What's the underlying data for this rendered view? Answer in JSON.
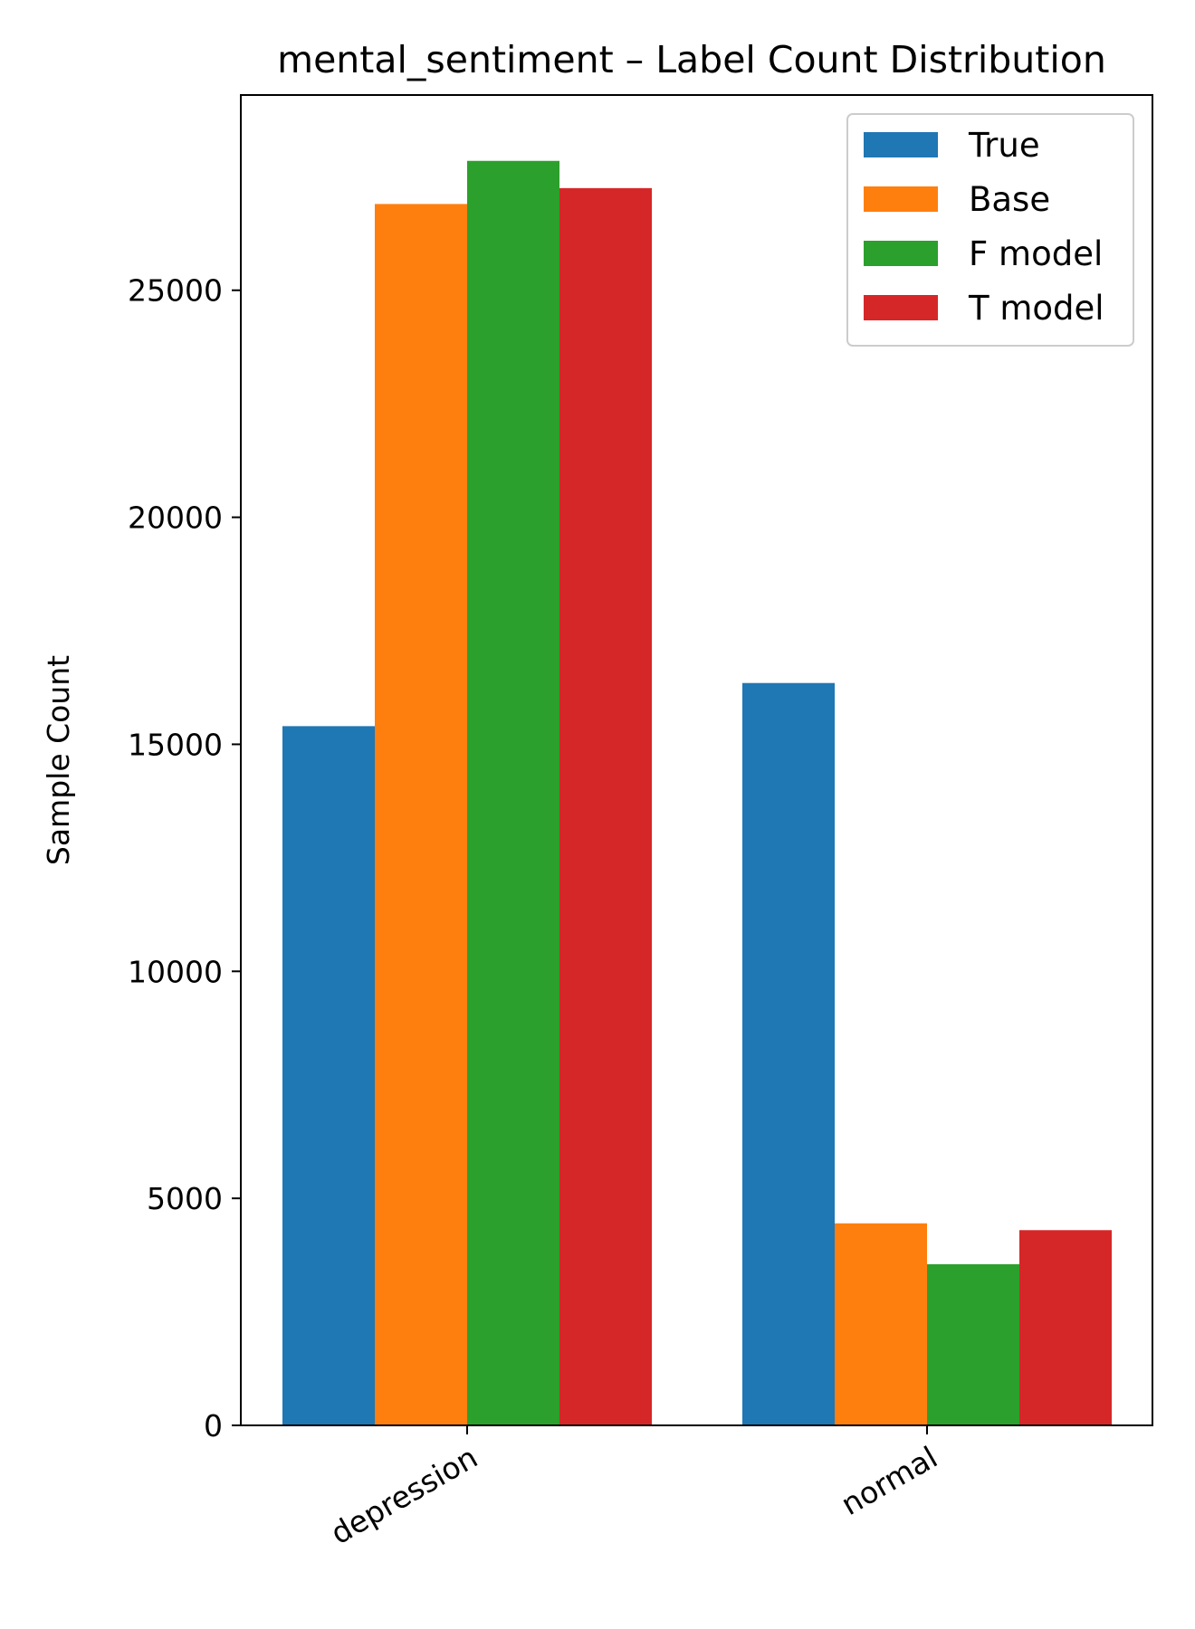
{
  "chart_data": {
    "type": "bar",
    "title": "mental_sentiment – Label Count Distribution",
    "xlabel": "",
    "ylabel": "Sample Count",
    "categories": [
      "depression",
      "normal"
    ],
    "series": [
      {
        "name": "True",
        "color": "#1f77b4",
        "values": [
          15400,
          16350
        ]
      },
      {
        "name": "Base",
        "color": "#ff7f0e",
        "values": [
          26900,
          4450
        ]
      },
      {
        "name": "F model",
        "color": "#2ca02c",
        "values": [
          27850,
          3550
        ]
      },
      {
        "name": "T model",
        "color": "#d62728",
        "values": [
          27250,
          4300
        ]
      }
    ],
    "ylim": [
      0,
      29300
    ],
    "yticks": [
      0,
      5000,
      10000,
      15000,
      20000,
      25000
    ],
    "ytick_labels": [
      "0",
      "5000",
      "10000",
      "15000",
      "20000",
      "25000"
    ],
    "xtick_rotation": -30,
    "legend_position": "top-right",
    "grid": false
  }
}
